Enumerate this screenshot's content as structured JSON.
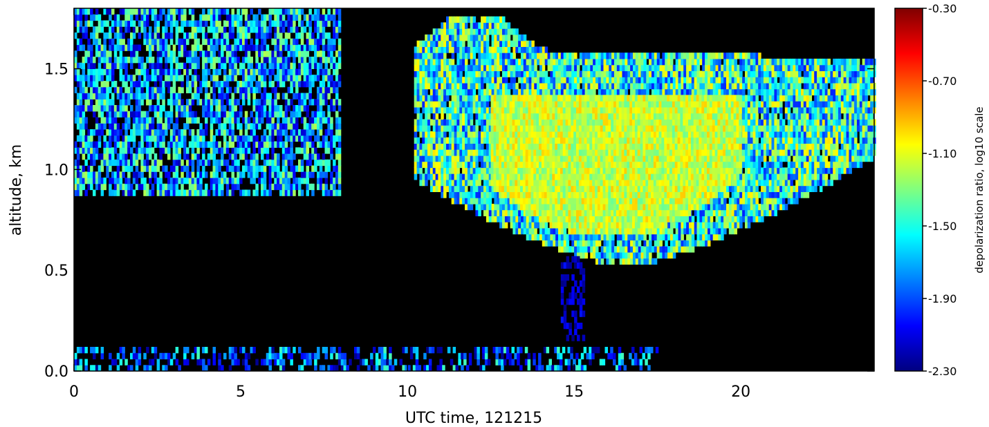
{
  "chart_data": {
    "type": "heatmap",
    "title": "",
    "xlabel": "UTC time, 121215",
    "ylabel": "altitude, km",
    "xlim": [
      0,
      24
    ],
    "ylim": [
      0,
      1.8
    ],
    "x_ticks": [
      "0",
      "5",
      "10",
      "15",
      "20"
    ],
    "x_tick_values": [
      0,
      5,
      10,
      15,
      20
    ],
    "y_ticks": [
      "0.0",
      "0.5",
      "1.0",
      "1.5"
    ],
    "y_tick_values": [
      0.0,
      0.5,
      1.0,
      1.5
    ],
    "background": "#000000",
    "colorscale": "jet",
    "colorbar": {
      "label": "depolarization ratio, log10 scale",
      "range": [
        -2.3,
        -0.3
      ],
      "ticks": [
        "-0.30",
        "-0.70",
        "-1.10",
        "-1.50",
        "-1.90",
        "-2.30"
      ],
      "tick_values": [
        -0.3,
        -0.7,
        -1.1,
        -1.5,
        -1.9,
        -2.3
      ]
    },
    "features": [
      {
        "name": "low-level aerosol 0-8 UTC",
        "time": [
          0,
          8
        ],
        "altitude": [
          0.87,
          1.8
        ],
        "value_range": [
          -2.2,
          -1.2
        ],
        "density": 0.75
      },
      {
        "name": "main cloud 10-24 UTC",
        "time": [
          10.2,
          24
        ],
        "altitude": [
          0.5,
          1.75
        ],
        "value_range": [
          -2.0,
          -1.0
        ],
        "density": 0.95
      },
      {
        "name": "dense core",
        "time": [
          12.5,
          20
        ],
        "altitude": [
          0.65,
          1.4
        ],
        "value_range": [
          -1.35,
          -0.95
        ],
        "density": 1.0
      },
      {
        "name": "fall streak",
        "time": [
          14.6,
          15.3
        ],
        "altitude": [
          0.15,
          0.55
        ],
        "value_range": [
          -2.3,
          -2.0
        ],
        "density": 0.5
      },
      {
        "name": "near-surface returns",
        "time": [
          0,
          17.5
        ],
        "altitude": [
          0.0,
          0.1
        ],
        "value_range": [
          -2.3,
          -1.4
        ],
        "density": 0.45
      }
    ]
  }
}
